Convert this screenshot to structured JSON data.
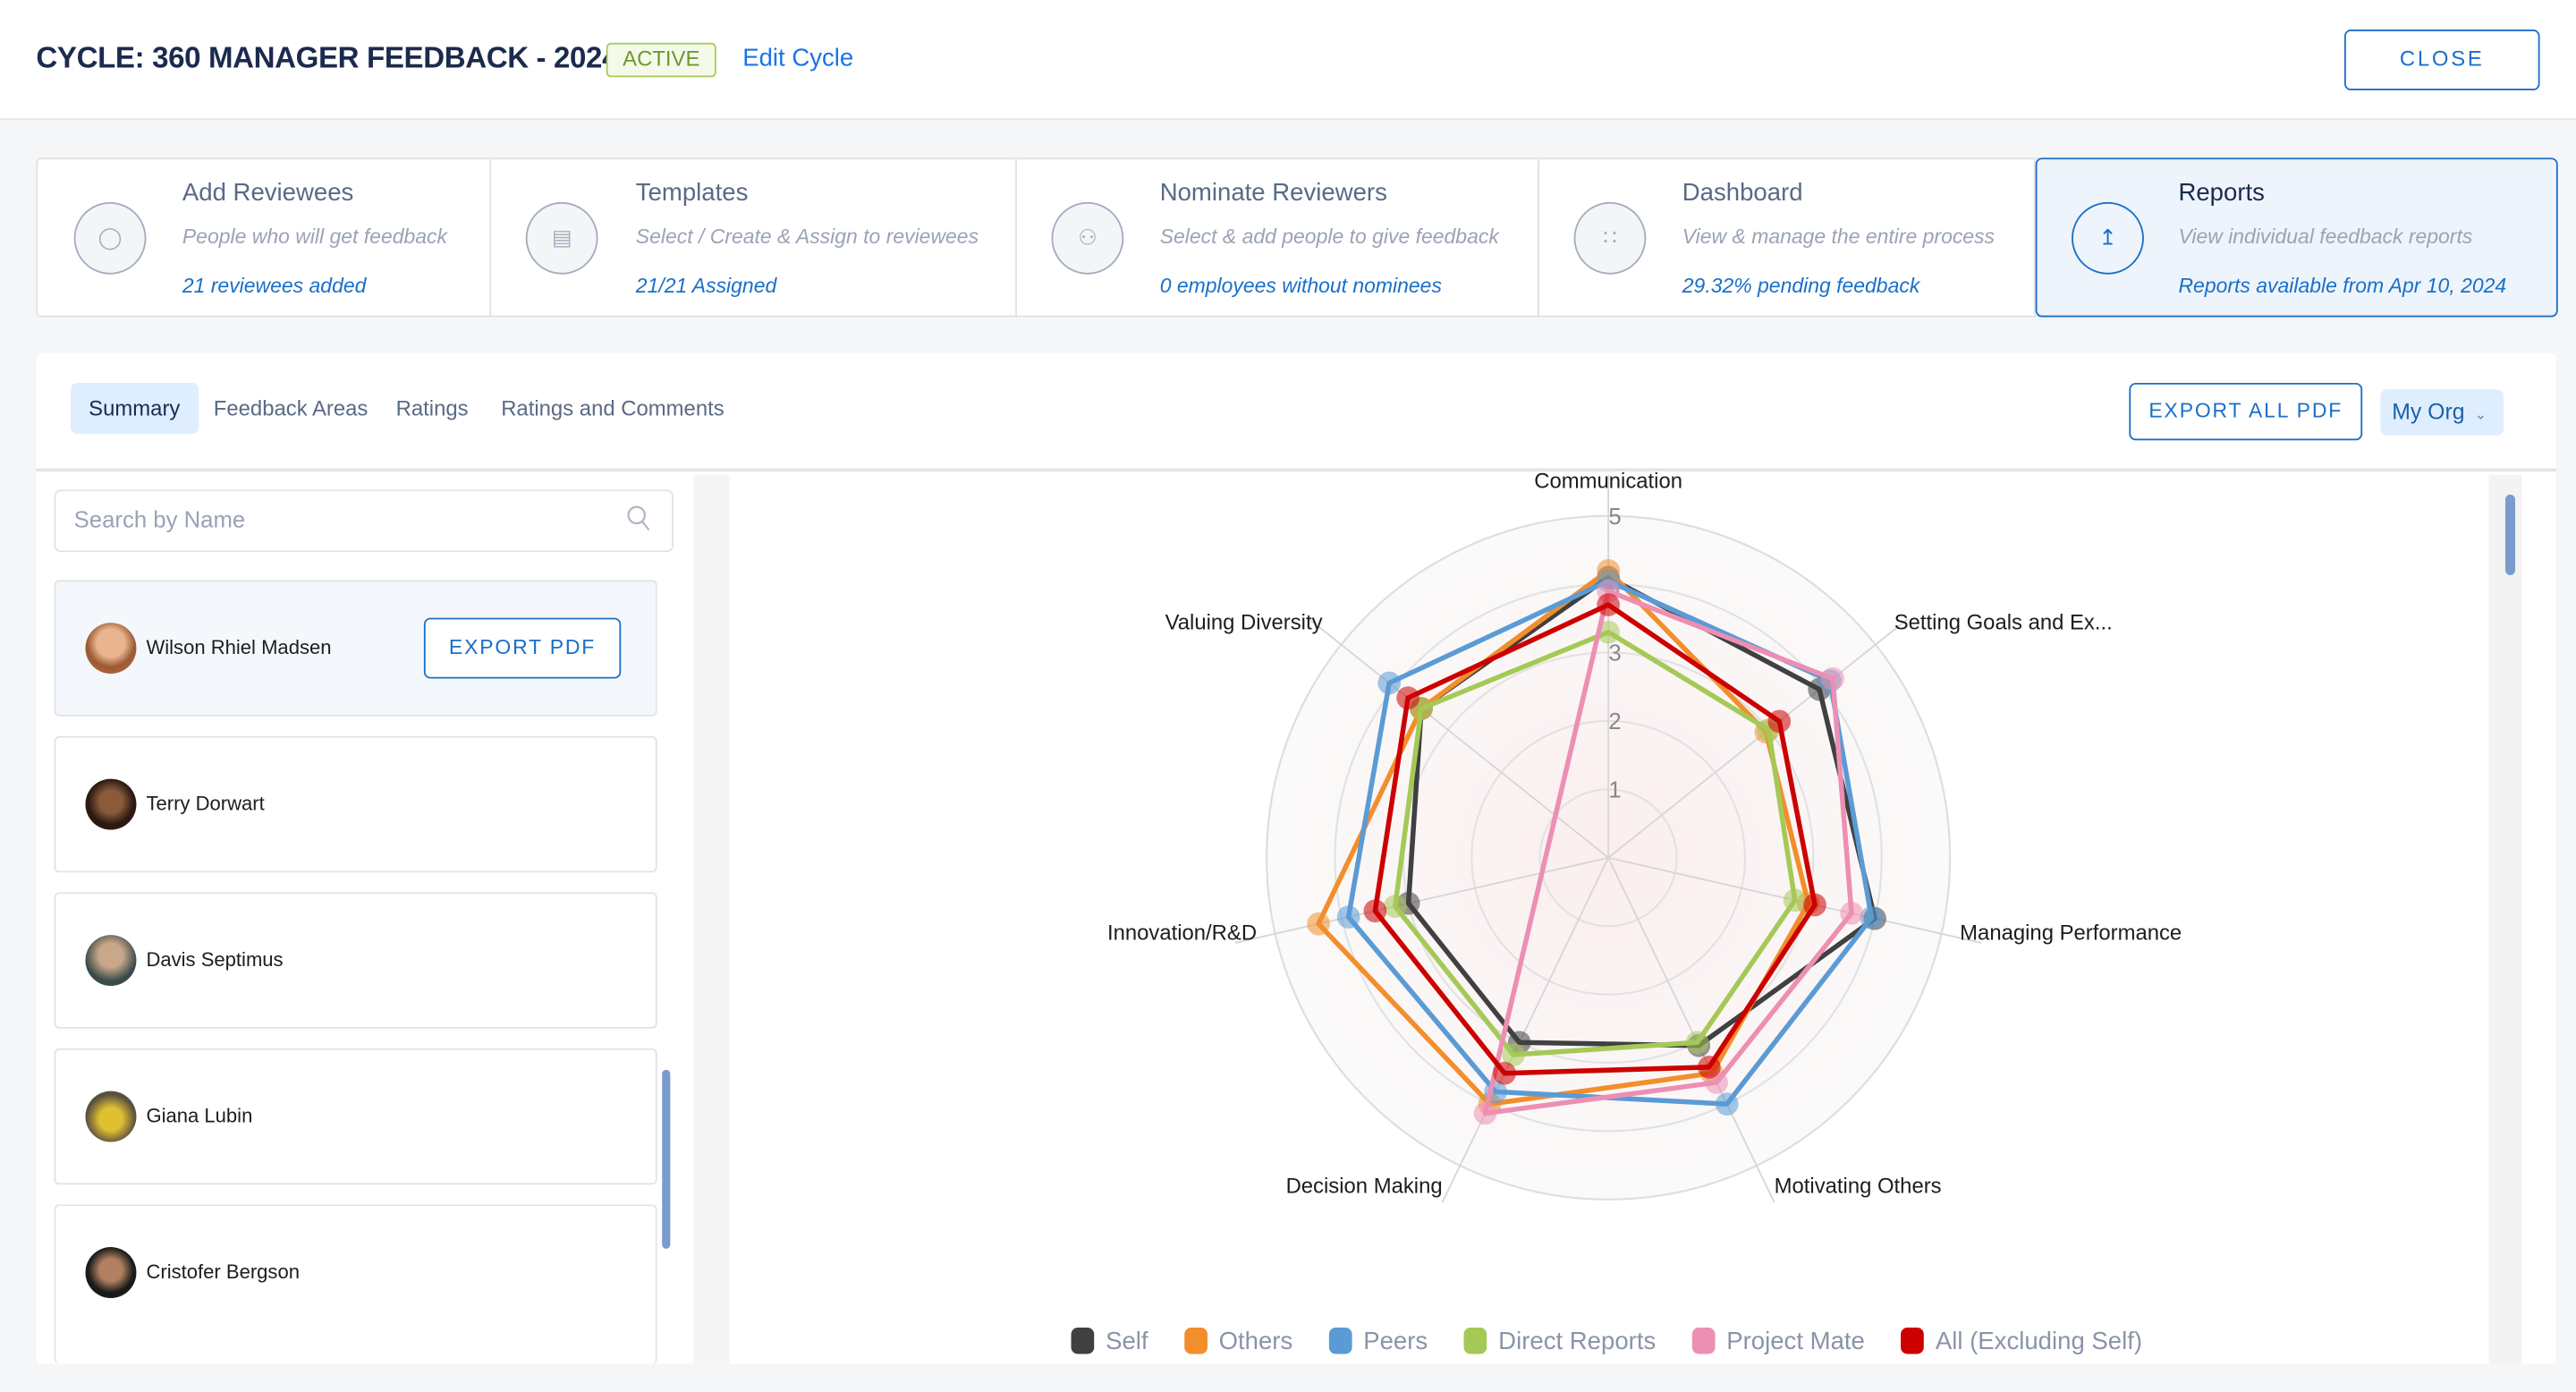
{
  "header": {
    "title": "CYCLE: 360 MANAGER FEEDBACK - 2024",
    "status": "ACTIVE",
    "edit_label": "Edit Cycle",
    "close_label": "CLOSE"
  },
  "steps": [
    {
      "title": "Add Reviewees",
      "subtitle": "People who will get feedback",
      "link": "21  reviewees added",
      "icon": "user-icon"
    },
    {
      "title": "Templates",
      "subtitle": "Select / Create & Assign to reviewees",
      "link": "21/21  Assigned",
      "icon": "clipboard-icon"
    },
    {
      "title": "Nominate Reviewers",
      "subtitle": "Select & add people to give feedback",
      "link": "0  employees without nominees",
      "icon": "users-icon"
    },
    {
      "title": "Dashboard",
      "subtitle": "View & manage the entire process",
      "link": "29.32% pending feedback",
      "icon": "grid-icon"
    },
    {
      "title": "Reports",
      "subtitle": "View individual feedback reports",
      "link": "Reports available from Apr 10, 2024",
      "icon": "chart-line-icon",
      "active": true
    }
  ],
  "tabs": [
    {
      "label": "Summary",
      "active": true
    },
    {
      "label": "Feedback Areas"
    },
    {
      "label": "Ratings"
    },
    {
      "label": "Ratings and Comments"
    }
  ],
  "toolbar": {
    "export_all_label": "EXPORT ALL PDF",
    "org_filter": "My Org"
  },
  "search": {
    "placeholder": "Search by Name",
    "value": ""
  },
  "reviewees": [
    {
      "name": "Wilson Rhiel Madsen",
      "selected": true,
      "export_label": "EXPORT PDF"
    },
    {
      "name": "Terry Dorwart"
    },
    {
      "name": "Davis Septimus"
    },
    {
      "name": "Giana Lubin"
    },
    {
      "name": "Cristofer Bergson"
    }
  ],
  "chart_data": {
    "type": "radar",
    "axes": [
      "Communication",
      "Setting Goals and Ex...",
      "Managing Performance",
      "Motivating Others",
      "Decision Making",
      "Innovation/R&D",
      "Valuing Diversity"
    ],
    "ticks": [
      "1",
      "2",
      "3",
      "4",
      "5"
    ],
    "range": [
      0,
      5
    ],
    "legend_position": "bottom",
    "series": [
      {
        "name": "Self",
        "color": "#404040",
        "values": [
          4.1,
          3.95,
          4.0,
          3.05,
          3.0,
          3.0,
          3.5
        ]
      },
      {
        "name": "Others",
        "color": "#f28e2b",
        "values": [
          4.2,
          2.95,
          3.0,
          3.5,
          4.0,
          4.35,
          3.5
        ]
      },
      {
        "name": "Peers",
        "color": "#5b9bd5",
        "values": [
          4.05,
          4.15,
          3.95,
          4.0,
          3.8,
          3.9,
          4.1
        ]
      },
      {
        "name": "Direct Reports",
        "color": "#a5c957",
        "values": [
          3.3,
          3.0,
          2.8,
          3.0,
          3.2,
          3.2,
          3.5
        ]
      },
      {
        "name": "Project Mate",
        "color": "#ec8fb3",
        "values": [
          3.9,
          4.2,
          3.65,
          3.65,
          4.15,
          null,
          null
        ]
      },
      {
        "name": "All (Excluding Self)",
        "color": "#cc0000",
        "values": [
          3.7,
          3.2,
          3.1,
          3.4,
          3.5,
          3.5,
          3.75
        ]
      }
    ]
  }
}
